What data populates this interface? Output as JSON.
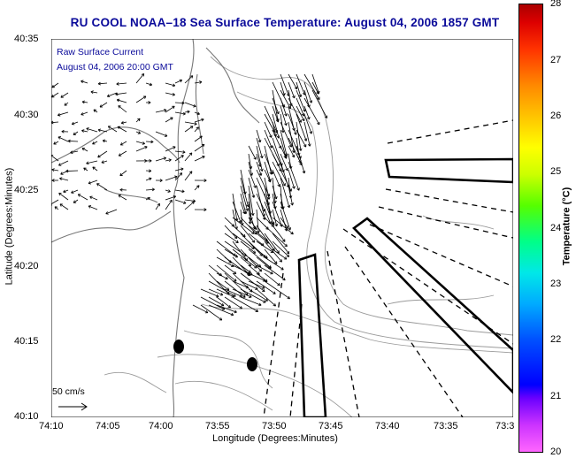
{
  "title": "RU COOL  NOAA–18  Sea Surface Temperature:  August 04, 2006 1857 GMT",
  "legend": {
    "line1": "Raw Surface Current",
    "line2": "August 04, 2006 20:00 GMT",
    "scale_label": "50 cm/s"
  },
  "axes": {
    "y_title": "Latitude (Degrees:Minutes)",
    "x_title": "Longitude (Degrees:Minutes)",
    "y_ticks": [
      "40:35",
      "40:30",
      "40:25",
      "40:20",
      "40:15",
      "40:10"
    ],
    "x_ticks": [
      "74:10",
      "74:05",
      "74:00",
      "73:55",
      "73:50",
      "73:45",
      "73:40",
      "73:35",
      "73:3"
    ]
  },
  "colorbar": {
    "title": "Temperature (°C)",
    "ticks": [
      "28",
      "27",
      "26",
      "25",
      "24",
      "23",
      "22",
      "21",
      "20"
    ],
    "range": [
      20,
      28
    ]
  },
  "colors": {
    "title": "#0a0a9a",
    "vectors": "#000000",
    "coast": "#888888"
  }
}
